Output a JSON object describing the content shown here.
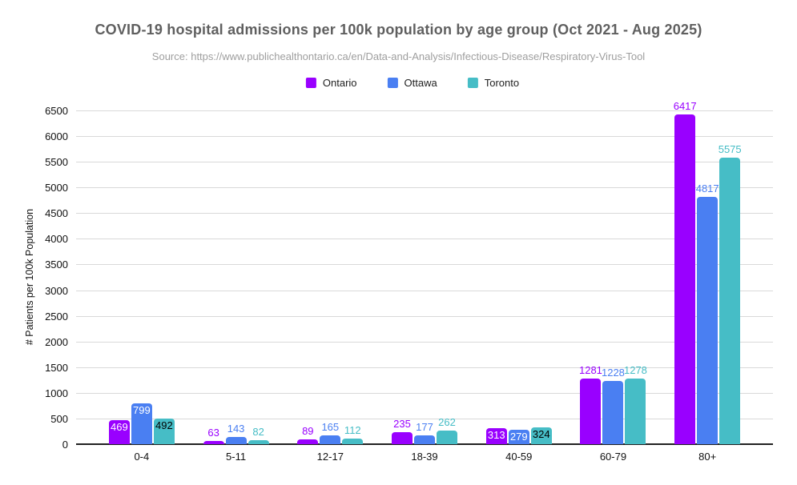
{
  "chart_data": {
    "type": "bar",
    "title": "COVID-19 hospital admissions per 100k population by age group (Oct 2021 - Aug 2025)",
    "subtitle": "Source: https://www.publichealthontario.ca/en/Data-and-Analysis/Infectious-Disease/Respiratory-Virus-Tool",
    "ylabel": "# Patients per 100k Population",
    "categories": [
      "0-4",
      "5-11",
      "12-17",
      "18-39",
      "40-59",
      "60-79",
      "80+"
    ],
    "series": [
      {
        "name": "Ontario",
        "color": "#9900ff",
        "inside_label_text_color": "#ffffff",
        "values": [
          469,
          63,
          89,
          235,
          313,
          1281,
          6417
        ]
      },
      {
        "name": "Ottawa",
        "color": "#4a7ff2",
        "inside_label_text_color": "#ffffff",
        "values": [
          799,
          143,
          165,
          177,
          279,
          1228,
          4817
        ]
      },
      {
        "name": "Toronto",
        "color": "#46bdc6",
        "inside_label_text_color": "#000000",
        "values": [
          492,
          82,
          112,
          262,
          324,
          1278,
          5575
        ]
      }
    ],
    "value_label_placement_by_category": [
      "inside",
      "above",
      "above",
      "above",
      "inside",
      "above",
      "above"
    ],
    "ylim": [
      0,
      6500
    ],
    "ytick_step": 500,
    "grid": true,
    "legend_position": "top",
    "colors": {
      "grid": "#d9d9d9",
      "axis": "#212121",
      "title": "#5f5f5f",
      "subtitle": "#9e9e9e",
      "tick_label": "#111111"
    }
  }
}
